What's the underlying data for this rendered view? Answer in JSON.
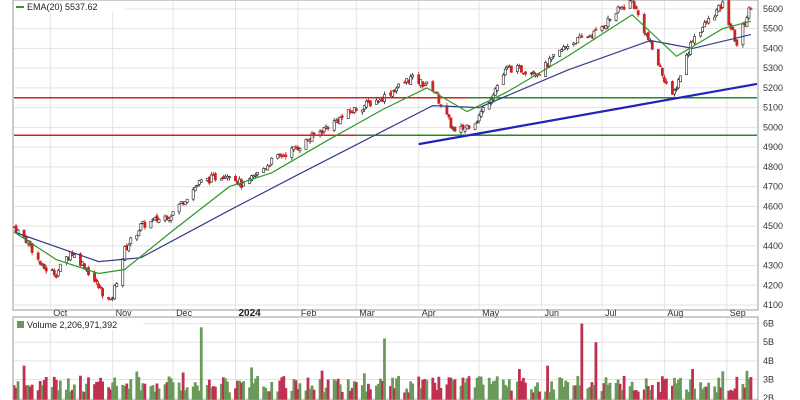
{
  "chart_data": [
    {
      "type": "candlestick",
      "panel": "price",
      "legend": {
        "ema20_label": "EMA(20) 5537.62"
      },
      "y_ticks": [
        "4100",
        "4200",
        "4300",
        "4400",
        "4500",
        "4600",
        "4700",
        "4800",
        "4900",
        "5000",
        "5100",
        "5200",
        "5300",
        "5400",
        "5500",
        "5600"
      ],
      "ylim": [
        4080,
        5640
      ],
      "x_ticks": [
        {
          "label": "Oct",
          "date": "2023-10-01"
        },
        {
          "label": "Nov",
          "date": "2023-11-01"
        },
        {
          "label": "Dec",
          "date": "2023-12-01"
        },
        {
          "label": "2024",
          "date": "2024-01-01",
          "bold": true
        },
        {
          "label": "Feb",
          "date": "2024-02-01"
        },
        {
          "label": "Mar",
          "date": "2024-03-01"
        },
        {
          "label": "Apr",
          "date": "2024-04-01"
        },
        {
          "label": "May",
          "date": "2024-05-01"
        },
        {
          "label": "Jun",
          "date": "2024-06-01"
        },
        {
          "label": "Jul",
          "date": "2024-07-01"
        },
        {
          "label": "Aug",
          "date": "2024-08-01"
        },
        {
          "label": "Sep",
          "date": "2024-09-01"
        }
      ],
      "xlim": [
        "2023-09-13",
        "2024-09-16"
      ],
      "close_points": [
        [
          "2023-09-13",
          4495
        ],
        [
          "2023-09-20",
          4420
        ],
        [
          "2023-09-27",
          4290
        ],
        [
          "2023-10-04",
          4260
        ],
        [
          "2023-10-11",
          4370
        ],
        [
          "2023-10-18",
          4300
        ],
        [
          "2023-10-25",
          4190
        ],
        [
          "2023-10-31",
          4110
        ],
        [
          "2023-11-07",
          4380
        ],
        [
          "2023-11-15",
          4500
        ],
        [
          "2023-11-30",
          4560
        ],
        [
          "2023-12-14",
          4720
        ],
        [
          "2023-12-29",
          4770
        ],
        [
          "2024-01-05",
          4700
        ],
        [
          "2024-01-19",
          4830
        ],
        [
          "2024-02-01",
          4900
        ],
        [
          "2024-02-15",
          5000
        ],
        [
          "2024-02-29",
          5090
        ],
        [
          "2024-03-14",
          5150
        ],
        [
          "2024-03-28",
          5250
        ],
        [
          "2024-04-08",
          5200
        ],
        [
          "2024-04-19",
          4970
        ],
        [
          "2024-04-30",
          5040
        ],
        [
          "2024-05-15",
          5300
        ],
        [
          "2024-05-31",
          5280
        ],
        [
          "2024-06-14",
          5420
        ],
        [
          "2024-06-28",
          5480
        ],
        [
          "2024-07-10",
          5600
        ],
        [
          "2024-07-16",
          5640
        ],
        [
          "2024-07-25",
          5420
        ],
        [
          "2024-08-05",
          5150
        ],
        [
          "2024-08-15",
          5450
        ],
        [
          "2024-08-30",
          5620
        ],
        [
          "2024-09-06",
          5420
        ],
        [
          "2024-09-13",
          5620
        ]
      ],
      "ema20_points": [
        [
          "2023-09-13",
          4470
        ],
        [
          "2023-10-04",
          4330
        ],
        [
          "2023-10-25",
          4260
        ],
        [
          "2023-11-07",
          4280
        ],
        [
          "2023-11-30",
          4470
        ],
        [
          "2023-12-29",
          4700
        ],
        [
          "2024-01-19",
          4770
        ],
        [
          "2024-02-15",
          4930
        ],
        [
          "2024-03-14",
          5090
        ],
        [
          "2024-04-05",
          5200
        ],
        [
          "2024-04-25",
          5080
        ],
        [
          "2024-05-15",
          5180
        ],
        [
          "2024-06-14",
          5360
        ],
        [
          "2024-07-16",
          5570
        ],
        [
          "2024-08-07",
          5360
        ],
        [
          "2024-08-30",
          5500
        ],
        [
          "2024-09-13",
          5537.62
        ]
      ],
      "ema50_points": [
        [
          "2023-09-13",
          4470
        ],
        [
          "2023-10-25",
          4320
        ],
        [
          "2023-11-15",
          4340
        ],
        [
          "2023-12-29",
          4580
        ],
        [
          "2024-02-01",
          4760
        ],
        [
          "2024-03-14",
          4980
        ],
        [
          "2024-04-08",
          5110
        ],
        [
          "2024-05-01",
          5100
        ],
        [
          "2024-06-14",
          5290
        ],
        [
          "2024-07-25",
          5440
        ],
        [
          "2024-08-15",
          5400
        ],
        [
          "2024-09-13",
          5470
        ]
      ],
      "horizontal_lines": [
        {
          "value": 5150,
          "color": "#d42020",
          "from": "2023-09-13",
          "to": "2024-04-25"
        },
        {
          "value": 5150,
          "color": "#1e8c1e",
          "from": "2024-04-25",
          "to": "2024-09-16"
        },
        {
          "value": 4960,
          "color": "#d42020",
          "from": "2023-09-13",
          "to": "2024-03-01"
        },
        {
          "value": 4960,
          "color": "#1e8c1e",
          "from": "2024-03-01",
          "to": "2024-09-16"
        }
      ],
      "trendline": {
        "color": "#2222bb",
        "from": [
          "2024-04-01",
          4915
        ],
        "to": [
          "2024-09-16",
          5220
        ]
      }
    },
    {
      "type": "bar",
      "panel": "volume",
      "legend": {
        "volume_label": "Volume 2,206,971,392"
      },
      "y_ticks": [
        "2B",
        "3B",
        "4B",
        "5B",
        "6B"
      ],
      "ylim": [
        1.9,
        6.3
      ],
      "spikes": [
        {
          "date": "2023-12-15",
          "value": 5.8
        },
        {
          "date": "2024-03-15",
          "value": 5.2
        },
        {
          "date": "2024-06-21",
          "value": 6.0
        },
        {
          "date": "2024-06-28",
          "value": 5.0
        }
      ]
    }
  ],
  "colors": {
    "up": "#ffffff",
    "down": "#cc2222",
    "ema20": "#2a9a2a",
    "ema50": "#3a3a8a",
    "volume_up": "#6a9a5a",
    "volume_down": "#c03050",
    "grid": "#e3e3e3"
  }
}
